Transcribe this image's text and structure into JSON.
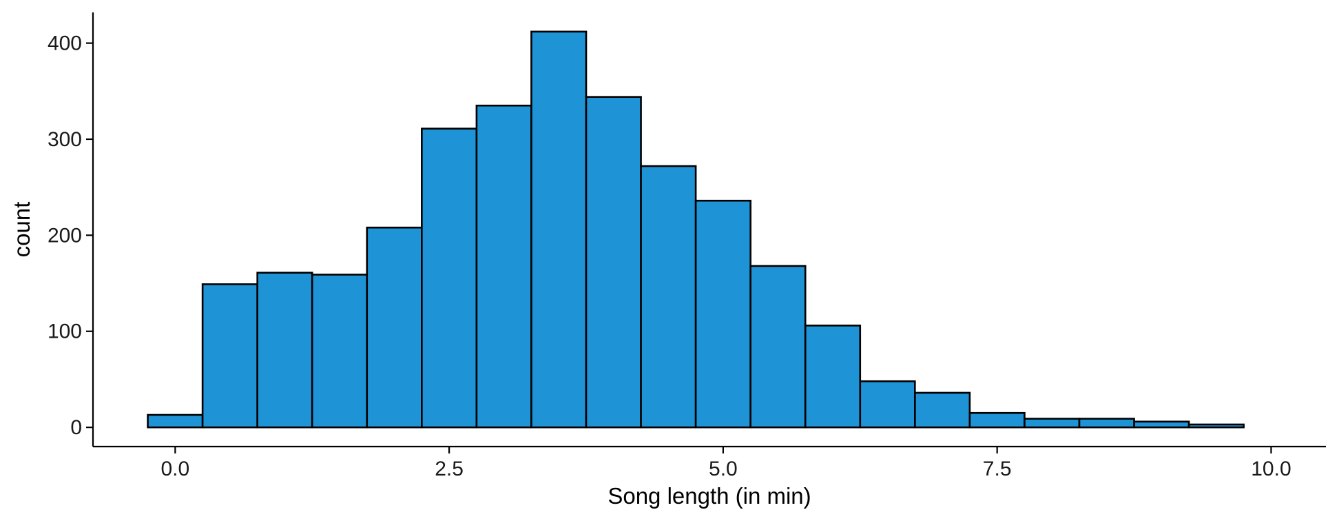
{
  "chart_data": {
    "type": "bar",
    "subtype": "histogram",
    "title": "",
    "xlabel": "Song length (in min)",
    "ylabel": "count",
    "bin_width": 0.5,
    "bins": [
      {
        "start": -0.25,
        "end": 0.25,
        "count": 13
      },
      {
        "start": 0.25,
        "end": 0.75,
        "count": 149
      },
      {
        "start": 0.75,
        "end": 1.25,
        "count": 161
      },
      {
        "start": 1.25,
        "end": 1.75,
        "count": 159
      },
      {
        "start": 1.75,
        "end": 2.25,
        "count": 208
      },
      {
        "start": 2.25,
        "end": 2.75,
        "count": 311
      },
      {
        "start": 2.75,
        "end": 3.25,
        "count": 335
      },
      {
        "start": 3.25,
        "end": 3.75,
        "count": 412
      },
      {
        "start": 3.75,
        "end": 4.25,
        "count": 344
      },
      {
        "start": 4.25,
        "end": 4.75,
        "count": 272
      },
      {
        "start": 4.75,
        "end": 5.25,
        "count": 236
      },
      {
        "start": 5.25,
        "end": 5.75,
        "count": 168
      },
      {
        "start": 5.75,
        "end": 6.25,
        "count": 106
      },
      {
        "start": 6.25,
        "end": 6.75,
        "count": 48
      },
      {
        "start": 6.75,
        "end": 7.25,
        "count": 36
      },
      {
        "start": 7.25,
        "end": 7.75,
        "count": 15
      },
      {
        "start": 7.75,
        "end": 8.25,
        "count": 9
      },
      {
        "start": 8.25,
        "end": 8.75,
        "count": 9
      },
      {
        "start": 8.75,
        "end": 9.25,
        "count": 6
      },
      {
        "start": 9.25,
        "end": 9.75,
        "count": 3
      }
    ],
    "xlim": [
      -0.75,
      10.5
    ],
    "ylim": [
      -20,
      432
    ],
    "x_ticks": [
      0.0,
      2.5,
      5.0,
      7.5,
      10.0
    ],
    "x_tick_labels": [
      "0.0",
      "2.5",
      "5.0",
      "7.5",
      "10.0"
    ],
    "y_ticks": [
      0,
      100,
      200,
      300,
      400
    ],
    "y_tick_labels": [
      "0",
      "100",
      "200",
      "300",
      "400"
    ],
    "bar_color": "#1e93d6",
    "edge_color": "#000000",
    "grid": false,
    "legend": "none"
  }
}
